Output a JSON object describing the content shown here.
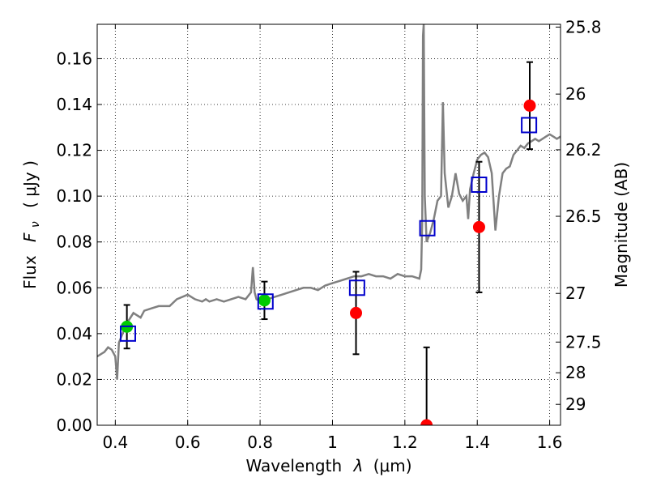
{
  "chart_data": {
    "type": "scatter",
    "x_axis": {
      "label_text": "Wavelength",
      "label_symbol": "λ",
      "label_unit": "(μm)",
      "range": [
        0.35,
        1.63
      ],
      "ticks": [
        0.4,
        0.6,
        0.8,
        1.0,
        1.2,
        1.4,
        1.6
      ],
      "tick_labels": [
        "0.4",
        "0.6",
        "0.8",
        "1",
        "1.2",
        "1.4",
        "1.6"
      ]
    },
    "y_axis": {
      "label_text": "Flux",
      "label_symbol": "F",
      "label_subscript": "ν",
      "label_unit": "( μJy )",
      "range": [
        0.0,
        0.175
      ],
      "ticks": [
        0.0,
        0.02,
        0.04,
        0.06,
        0.08,
        0.1,
        0.12,
        0.14,
        0.16
      ],
      "tick_labels": [
        "0.00",
        "0.02",
        "0.04",
        "0.06",
        "0.08",
        "0.10",
        "0.12",
        "0.14",
        "0.16"
      ]
    },
    "y2_axis": {
      "label": "Magnitude (AB)",
      "ticks": [
        {
          "mag": 25.8,
          "label": "25.8"
        },
        {
          "mag": 26.0,
          "label": "26"
        },
        {
          "mag": 26.2,
          "label": "26.2"
        },
        {
          "mag": 26.5,
          "label": "26.5"
        },
        {
          "mag": 27.0,
          "label": "27"
        },
        {
          "mag": 27.5,
          "label": "27.5"
        },
        {
          "mag": 28.0,
          "label": "28"
        },
        {
          "mag": 29.0,
          "label": "29"
        }
      ]
    },
    "grid": true,
    "colors": {
      "template": "#808080",
      "green_points": "#00cc00",
      "red_points": "#ff0000",
      "model_boxes": "#0000cc",
      "errorbar": "#000000"
    },
    "template_spectrum": {
      "x": [
        0.35,
        0.37,
        0.38,
        0.39,
        0.4,
        0.405,
        0.41,
        0.42,
        0.43,
        0.45,
        0.47,
        0.48,
        0.5,
        0.52,
        0.55,
        0.57,
        0.6,
        0.62,
        0.64,
        0.65,
        0.66,
        0.68,
        0.7,
        0.72,
        0.74,
        0.76,
        0.775,
        0.78,
        0.785,
        0.79,
        0.8,
        0.82,
        0.84,
        0.86,
        0.88,
        0.9,
        0.92,
        0.94,
        0.96,
        0.98,
        1.0,
        1.02,
        1.04,
        1.06,
        1.08,
        1.1,
        1.12,
        1.14,
        1.16,
        1.18,
        1.2,
        1.22,
        1.24,
        1.245,
        1.248,
        1.25,
        1.252,
        1.255,
        1.26,
        1.27,
        1.28,
        1.29,
        1.3,
        1.305,
        1.31,
        1.32,
        1.33,
        1.34,
        1.35,
        1.36,
        1.37,
        1.375,
        1.38,
        1.39,
        1.4,
        1.41,
        1.42,
        1.43,
        1.44,
        1.45,
        1.46,
        1.47,
        1.48,
        1.49,
        1.5,
        1.51,
        1.52,
        1.53,
        1.54,
        1.55,
        1.56,
        1.57,
        1.58,
        1.59,
        1.6,
        1.61,
        1.62,
        1.63
      ],
      "y": [
        0.03,
        0.032,
        0.034,
        0.033,
        0.03,
        0.02,
        0.036,
        0.04,
        0.044,
        0.049,
        0.047,
        0.05,
        0.051,
        0.052,
        0.052,
        0.055,
        0.057,
        0.055,
        0.054,
        0.055,
        0.054,
        0.055,
        0.054,
        0.055,
        0.056,
        0.055,
        0.058,
        0.069,
        0.058,
        0.055,
        0.054,
        0.055,
        0.056,
        0.057,
        0.058,
        0.059,
        0.06,
        0.06,
        0.059,
        0.061,
        0.062,
        0.063,
        0.064,
        0.065,
        0.065,
        0.066,
        0.065,
        0.065,
        0.064,
        0.066,
        0.065,
        0.065,
        0.064,
        0.068,
        0.09,
        0.17,
        0.175,
        0.1,
        0.08,
        0.084,
        0.09,
        0.098,
        0.1,
        0.141,
        0.11,
        0.095,
        0.1,
        0.11,
        0.101,
        0.098,
        0.1,
        0.09,
        0.103,
        0.11,
        0.116,
        0.118,
        0.119,
        0.117,
        0.11,
        0.085,
        0.1,
        0.11,
        0.112,
        0.113,
        0.118,
        0.12,
        0.122,
        0.121,
        0.123,
        0.124,
        0.125,
        0.124,
        0.125,
        0.126,
        0.127,
        0.126,
        0.125,
        0.126
      ]
    },
    "green_points": [
      {
        "x": 0.432,
        "y": 0.043,
        "err": 0.0095
      },
      {
        "x": 0.812,
        "y": 0.0545,
        "err": 0.0082
      }
    ],
    "red_points": [
      {
        "x": 1.065,
        "y": 0.049,
        "err": 0.018
      },
      {
        "x": 1.26,
        "y": 0.0,
        "err": 0.034
      },
      {
        "x": 1.405,
        "y": 0.0865,
        "err": 0.0285
      },
      {
        "x": 1.545,
        "y": 0.1395,
        "err": 0.019
      }
    ],
    "model_boxes": [
      {
        "x": 0.435,
        "y": 0.04
      },
      {
        "x": 0.815,
        "y": 0.054
      },
      {
        "x": 1.068,
        "y": 0.06
      },
      {
        "x": 1.262,
        "y": 0.086
      },
      {
        "x": 1.405,
        "y": 0.105
      },
      {
        "x": 1.543,
        "y": 0.131
      }
    ]
  }
}
